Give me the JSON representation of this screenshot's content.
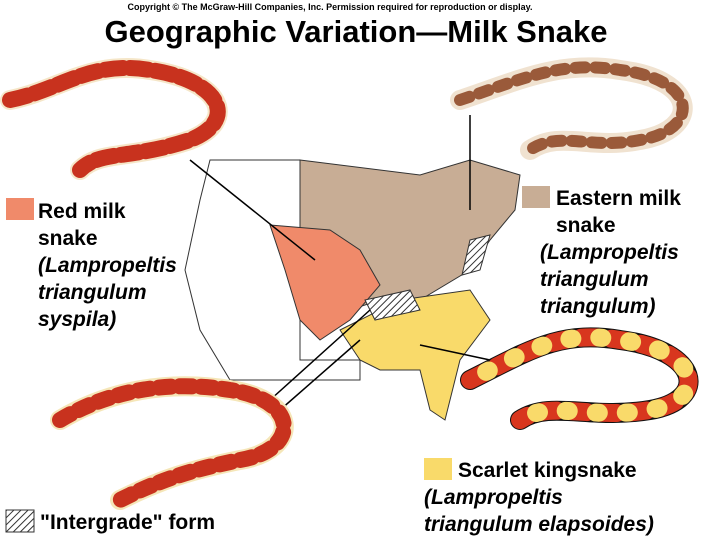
{
  "copyright": "Copyright © The McGraw-Hill Companies, Inc. Permission required for reproduction or display.",
  "title": "Geographic Variation—Milk Snake",
  "legend": [
    {
      "lines": [
        "Red milk",
        "snake",
        "(Lampropeltis",
        "triangulum",
        "syspila)"
      ]
    },
    {
      "lines": [
        "Eastern milk",
        "snake",
        "(Lampropeltis",
        "triangulum",
        "triangulum)"
      ]
    },
    {
      "lines": [
        "Scarlet kingsnake",
        "(Lampropeltis",
        "triangulum elapsoides)"
      ]
    },
    {
      "lines": [
        "\"Intergrade\" form"
      ]
    }
  ]
}
